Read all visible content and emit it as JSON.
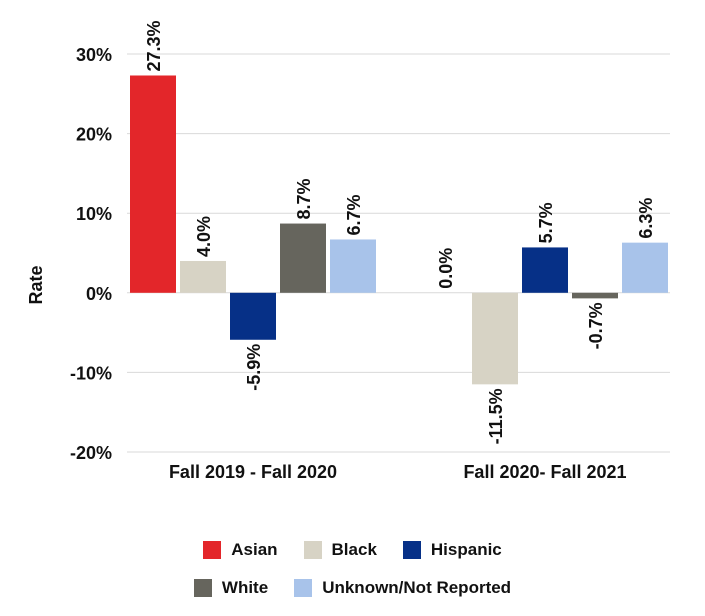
{
  "chart_data": {
    "type": "bar",
    "title": "",
    "xlabel": "",
    "ylabel": "Rate",
    "ylim": [
      -20,
      30
    ],
    "yticks": [
      -20,
      -10,
      0,
      10,
      20,
      30
    ],
    "ytick_labels": [
      "-20%",
      "-10%",
      "0%",
      "10%",
      "20%",
      "30%"
    ],
    "grid": true,
    "legend_position": "bottom",
    "categories": [
      "Fall 2019 - Fall 2020",
      "Fall 2020- Fall 2021"
    ],
    "series": [
      {
        "name": "Asian",
        "color": "#e3262a",
        "values": [
          27.3,
          0.0
        ],
        "labels": [
          "27.3%",
          "0.0%"
        ]
      },
      {
        "name": "Black",
        "color": "#d7d3c5",
        "values": [
          4.0,
          -11.5
        ],
        "labels": [
          "4.0%",
          "-11.5%"
        ]
      },
      {
        "name": "Hispanic",
        "color": "#063087",
        "values": [
          -5.9,
          5.7
        ],
        "labels": [
          "-5.9%",
          "5.7%"
        ]
      },
      {
        "name": "White",
        "color": "#66655d",
        "values": [
          8.7,
          -0.7
        ],
        "labels": [
          "8.7%",
          "-0.7%"
        ]
      },
      {
        "name": "Unknown/Not Reported",
        "color": "#a8c3ea",
        "values": [
          6.7,
          6.3
        ],
        "labels": [
          "6.7%",
          "6.3%"
        ]
      }
    ]
  }
}
